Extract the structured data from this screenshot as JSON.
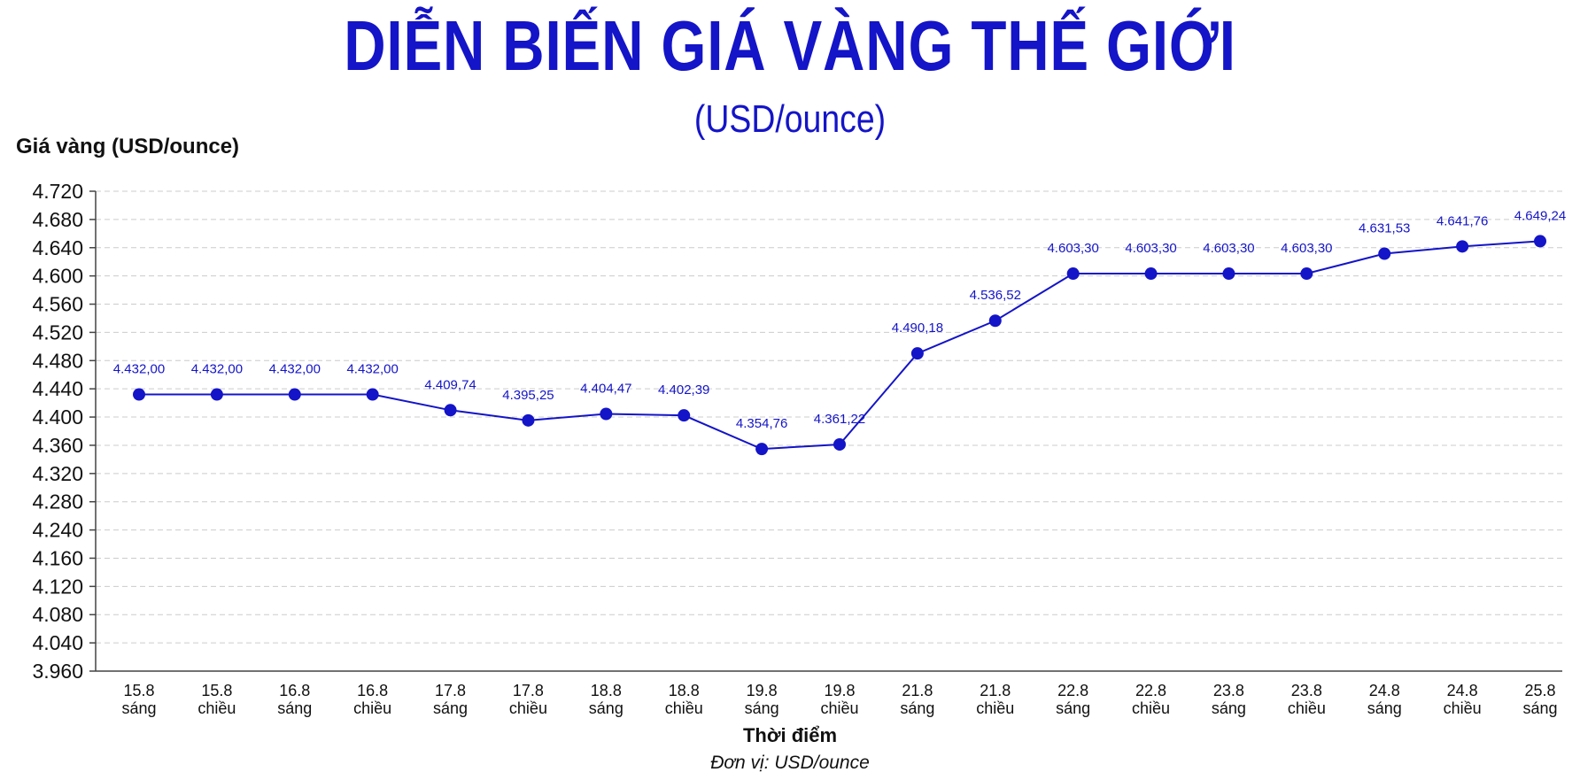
{
  "title": "DIỄN BIẾN GIÁ VÀNG THẾ GIỚI",
  "subtitle": "(USD/ounce)",
  "note": "Đơn vị: USD/ounce",
  "colors": {
    "accent": "#1414c8",
    "grid": "#cccccc"
  },
  "chart_data": {
    "type": "line",
    "title": "DIỄN BIẾN GIÁ VÀNG THẾ GIỚI",
    "subtitle": "(USD/ounce)",
    "ylabel": "Giá vàng (USD/ounce)",
    "xlabel": "Thời điểm",
    "ylim": [
      3960,
      4720
    ],
    "yticks": [
      "3.960",
      "4.040",
      "4.080",
      "4.120",
      "4.160",
      "4.240",
      "4.280",
      "4.320",
      "4.360",
      "4.400",
      "4.440",
      "4.480",
      "4.520",
      "4.560",
      "4.600",
      "4.640",
      "4.680",
      "4.720"
    ],
    "grid": true,
    "categories": [
      [
        "15.8",
        "sáng"
      ],
      [
        "15.8",
        "chiều"
      ],
      [
        "16.8",
        "sáng"
      ],
      [
        "16.8",
        "chiều"
      ],
      [
        "17.8",
        "sáng"
      ],
      [
        "17.8",
        "chiều"
      ],
      [
        "18.8",
        "sáng"
      ],
      [
        "18.8",
        "chiều"
      ],
      [
        "19.8",
        "sáng"
      ],
      [
        "19.8",
        "chiều"
      ],
      [
        "21.8",
        "sáng"
      ],
      [
        "21.8",
        "chiều"
      ],
      [
        "22.8",
        "sáng"
      ],
      [
        "22.8",
        "chiều"
      ],
      [
        "23.8",
        "sáng"
      ],
      [
        "23.8",
        "chiều"
      ],
      [
        "24.8",
        "sáng"
      ],
      [
        "24.8",
        "chiều"
      ],
      [
        "25.8",
        "sáng"
      ]
    ],
    "values": [
      4432.0,
      4432.0,
      4432.0,
      4432.0,
      4409.74,
      4395.25,
      4404.47,
      4402.39,
      4354.76,
      4361.22,
      4490.18,
      4536.52,
      4603.3,
      4603.3,
      4603.3,
      4603.3,
      4631.53,
      4641.76,
      4649.24
    ],
    "labels": [
      "4.432,00",
      "4.432,00",
      "4.432,00",
      "4.432,00",
      "4.409,74",
      "4.395,25",
      "4.404,47",
      "4.402,39",
      "4.354,76",
      "4.361,22",
      "4.490,18",
      "4.536,52",
      "4.603,30",
      "4.603,30",
      "4.603,30",
      "4.603,30",
      "4.631,53",
      "4.641,76",
      "4.649,24"
    ]
  }
}
